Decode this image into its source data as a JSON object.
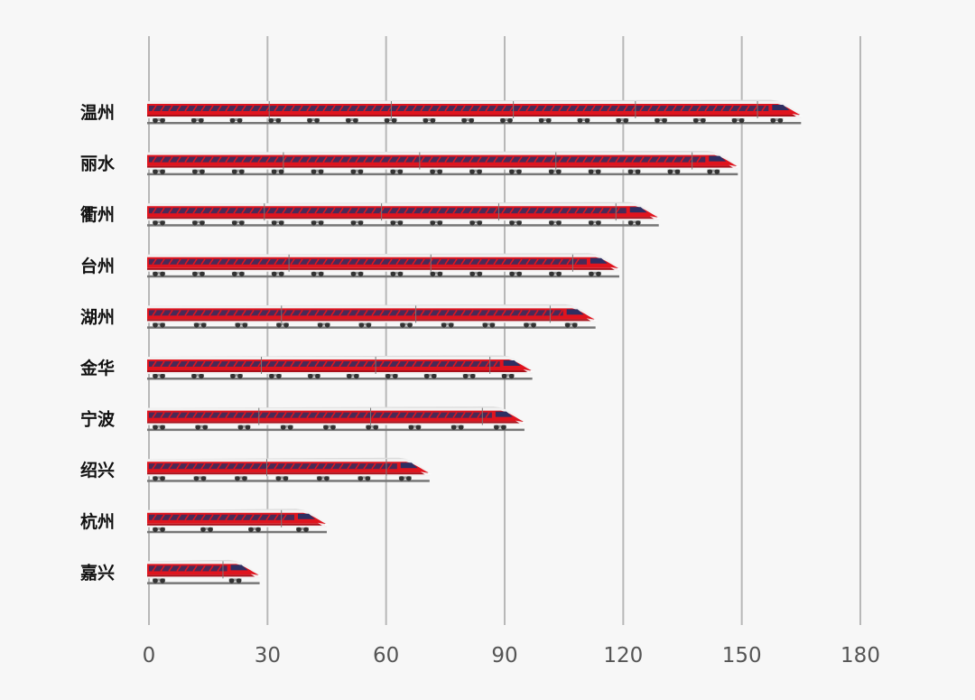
{
  "chart_data": {
    "type": "bar",
    "title": "",
    "xlabel": "",
    "ylabel": "",
    "orientation": "horizontal",
    "categories": [
      "温州",
      "丽水",
      "衢州",
      "台州",
      "湖州",
      "金华",
      "宁波",
      "绍兴",
      "杭州",
      "嘉兴"
    ],
    "values": [
      165,
      149,
      129,
      119,
      113,
      97,
      95,
      71,
      45,
      28
    ],
    "xlim": [
      0,
      180
    ],
    "ticks": [
      0,
      30,
      60,
      90,
      120,
      150,
      180
    ],
    "grid": true,
    "legend": "none",
    "colors": {
      "background": "#f7f7f7",
      "grid": "#b8b8b8",
      "train_red": "#e0141e",
      "train_dark_red": "#a8101a",
      "train_body": "#f2f2f2",
      "train_shadow": "#9a9a9a",
      "window_navy": "#2e2e62",
      "rail": "#777777",
      "wheel": "#333333"
    },
    "mark_style": "high-speed-train"
  }
}
